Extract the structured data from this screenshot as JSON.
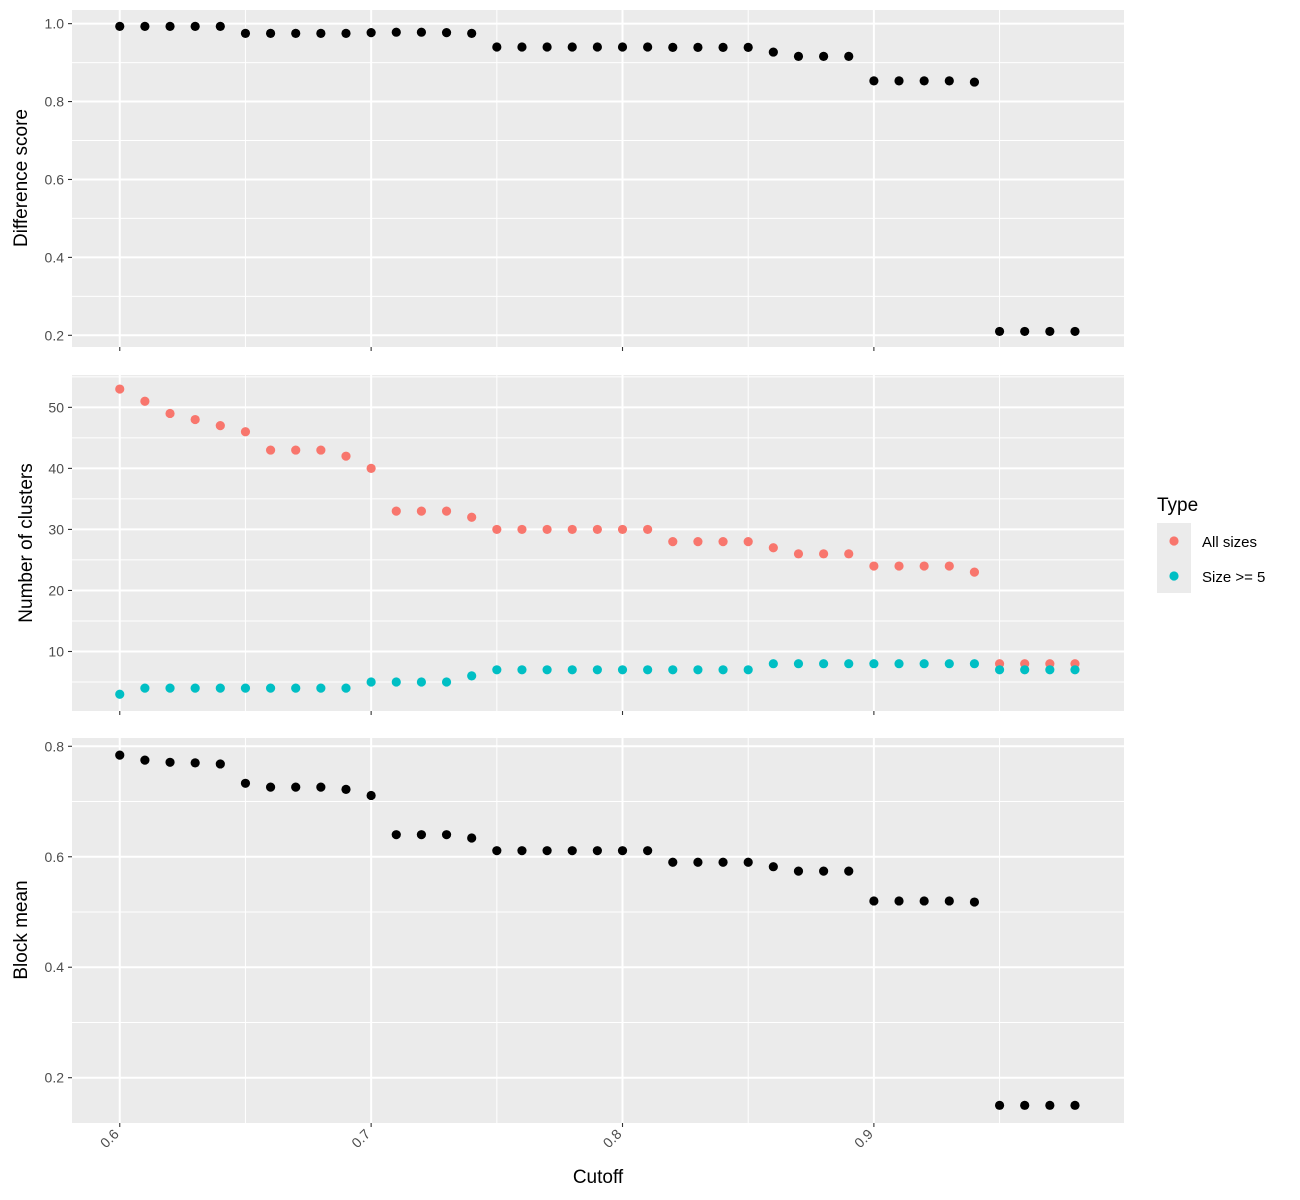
{
  "chart_data": [
    {
      "type": "scatter",
      "panel": "top",
      "title": "",
      "xlabel": "",
      "ylabel": "Difference score",
      "xlim": [
        0.581,
        0.9995
      ],
      "ylim": [
        0.17,
        1.035
      ],
      "xticks": [
        0.6,
        0.7,
        0.8,
        0.9
      ],
      "yticks": [
        0.2,
        0.4,
        0.6,
        0.8,
        1.0
      ],
      "ytick_labels": [
        "0.2",
        "0.4",
        "0.6",
        "0.8",
        "1.0"
      ],
      "grid": true,
      "series": [
        {
          "color": "#000000",
          "x": [
            0.6,
            0.61,
            0.62,
            0.63,
            0.64,
            0.65,
            0.66,
            0.67,
            0.68,
            0.69,
            0.7,
            0.71,
            0.72,
            0.73,
            0.74,
            0.75,
            0.76,
            0.77,
            0.78,
            0.79,
            0.8,
            0.81,
            0.82,
            0.83,
            0.84,
            0.85,
            0.86,
            0.87,
            0.88,
            0.89,
            0.9,
            0.91,
            0.92,
            0.93,
            0.94,
            0.95,
            0.96,
            0.97,
            0.98
          ],
          "y": [
            0.993,
            0.993,
            0.993,
            0.993,
            0.993,
            0.975,
            0.975,
            0.975,
            0.975,
            0.975,
            0.977,
            0.978,
            0.978,
            0.977,
            0.975,
            0.94,
            0.94,
            0.94,
            0.94,
            0.94,
            0.94,
            0.94,
            0.939,
            0.939,
            0.939,
            0.939,
            0.927,
            0.916,
            0.916,
            0.916,
            0.853,
            0.853,
            0.853,
            0.853,
            0.85,
            0.21,
            0.21,
            0.21,
            0.21
          ]
        }
      ]
    },
    {
      "type": "scatter",
      "panel": "middle",
      "title": "",
      "xlabel": "",
      "ylabel": "Number of clusters",
      "xlim": [
        0.581,
        0.9995
      ],
      "ylim": [
        0.25,
        55.3
      ],
      "xticks": [
        0.6,
        0.7,
        0.8,
        0.9
      ],
      "yticks": [
        10,
        20,
        30,
        40,
        50
      ],
      "ytick_labels": [
        "10",
        "20",
        "30",
        "40",
        "50"
      ],
      "grid": true,
      "legend": {
        "title": "Type",
        "position": "right"
      },
      "series": [
        {
          "name": "All sizes",
          "color": "#F8766D",
          "x": [
            0.6,
            0.61,
            0.62,
            0.63,
            0.64,
            0.65,
            0.66,
            0.67,
            0.68,
            0.69,
            0.7,
            0.71,
            0.72,
            0.73,
            0.74,
            0.75,
            0.76,
            0.77,
            0.78,
            0.79,
            0.8,
            0.81,
            0.82,
            0.83,
            0.84,
            0.85,
            0.86,
            0.87,
            0.88,
            0.89,
            0.9,
            0.91,
            0.92,
            0.93,
            0.94,
            0.95,
            0.96,
            0.97,
            0.98
          ],
          "y": [
            53,
            51,
            49,
            48,
            47,
            46,
            43,
            43,
            43,
            42,
            40,
            33,
            33,
            33,
            32,
            30,
            30,
            30,
            30,
            30,
            30,
            30,
            28,
            28,
            28,
            28,
            27,
            26,
            26,
            26,
            24,
            24,
            24,
            24,
            23,
            8,
            8,
            8,
            8
          ]
        },
        {
          "name": "Size >= 5",
          "color": "#00BFC4",
          "x": [
            0.6,
            0.61,
            0.62,
            0.63,
            0.64,
            0.65,
            0.66,
            0.67,
            0.68,
            0.69,
            0.7,
            0.71,
            0.72,
            0.73,
            0.74,
            0.75,
            0.76,
            0.77,
            0.78,
            0.79,
            0.8,
            0.81,
            0.82,
            0.83,
            0.84,
            0.85,
            0.86,
            0.87,
            0.88,
            0.89,
            0.9,
            0.91,
            0.92,
            0.93,
            0.94,
            0.95,
            0.96,
            0.97,
            0.98
          ],
          "y": [
            3,
            4,
            4,
            4,
            4,
            4,
            4,
            4,
            4,
            4,
            5,
            5,
            5,
            5,
            6,
            7,
            7,
            7,
            7,
            7,
            7,
            7,
            7,
            7,
            7,
            7,
            8,
            8,
            8,
            8,
            8,
            8,
            8,
            8,
            8,
            7,
            7,
            7,
            7
          ]
        }
      ]
    },
    {
      "type": "scatter",
      "panel": "bottom",
      "title": "",
      "xlabel": "Cutoff",
      "ylabel": "Block mean",
      "xlim": [
        0.581,
        0.9995
      ],
      "ylim": [
        0.118,
        0.815
      ],
      "xticks": [
        0.6,
        0.7,
        0.8,
        0.9
      ],
      "xtick_labels": [
        "0.6",
        "0.7",
        "0.8",
        "0.9"
      ],
      "yticks": [
        0.2,
        0.4,
        0.6,
        0.8
      ],
      "ytick_labels": [
        "0.2",
        "0.4",
        "0.6",
        "0.8"
      ],
      "grid": true,
      "series": [
        {
          "color": "#000000",
          "x": [
            0.6,
            0.61,
            0.62,
            0.63,
            0.64,
            0.65,
            0.66,
            0.67,
            0.68,
            0.69,
            0.7,
            0.71,
            0.72,
            0.73,
            0.74,
            0.75,
            0.76,
            0.77,
            0.78,
            0.79,
            0.8,
            0.81,
            0.82,
            0.83,
            0.84,
            0.85,
            0.86,
            0.87,
            0.88,
            0.89,
            0.9,
            0.91,
            0.92,
            0.93,
            0.94,
            0.95,
            0.96,
            0.97,
            0.98
          ],
          "y": [
            0.784,
            0.775,
            0.771,
            0.77,
            0.768,
            0.733,
            0.726,
            0.726,
            0.726,
            0.722,
            0.711,
            0.64,
            0.64,
            0.64,
            0.634,
            0.611,
            0.611,
            0.611,
            0.611,
            0.611,
            0.611,
            0.611,
            0.59,
            0.59,
            0.59,
            0.59,
            0.582,
            0.574,
            0.574,
            0.574,
            0.52,
            0.52,
            0.52,
            0.52,
            0.518,
            0.15,
            0.15,
            0.15,
            0.15
          ]
        }
      ]
    }
  ]
}
